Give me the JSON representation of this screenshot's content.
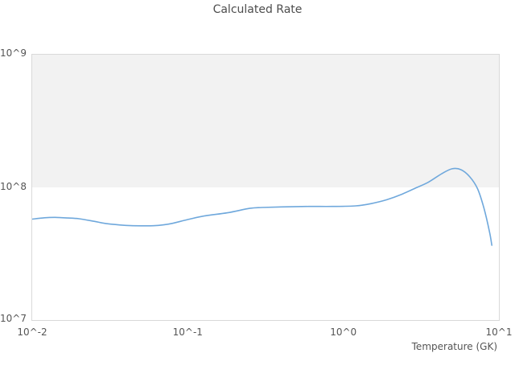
{
  "colors": {
    "line": "#6fa8dc",
    "band_fill": "#f2f2f2",
    "plot_border": "#d9d9d9",
    "title_text": "#4d4d4d",
    "tick_text": "#555555"
  },
  "chart_data": {
    "type": "line",
    "title": "Calculated Rate",
    "xlabel": "Temperature (GK)",
    "ylabel": "",
    "x_scale": "log",
    "y_scale": "log",
    "xlim": [
      0.01,
      10
    ],
    "ylim": [
      10000000.0,
      1000000000.0
    ],
    "x_ticks": [
      "10^-2",
      "10^-1",
      "10^0",
      "10^1"
    ],
    "y_ticks": [
      "10^7",
      "10^8",
      "10^9"
    ],
    "grid": false,
    "legend": "none",
    "shaded_band_y": [
      100000000.0,
      1000000000.0
    ],
    "series": [
      {
        "name": "Calculated Rate",
        "points": [
          [
            0.01,
            57600000.0
          ],
          [
            0.012,
            59000000.0
          ],
          [
            0.014,
            59400000.0
          ],
          [
            0.017,
            58800000.0
          ],
          [
            0.02,
            58000000.0
          ],
          [
            0.025,
            55500000.0
          ],
          [
            0.03,
            53300000.0
          ],
          [
            0.04,
            51700000.0
          ],
          [
            0.05,
            51300000.0
          ],
          [
            0.06,
            51400000.0
          ],
          [
            0.07,
            52200000.0
          ],
          [
            0.08,
            53600000.0
          ],
          [
            0.1,
            57200000.0
          ],
          [
            0.13,
            61100000.0
          ],
          [
            0.18,
            64300000.0
          ],
          [
            0.25,
            69500000.0
          ],
          [
            0.3,
            70500000.0
          ],
          [
            0.4,
            71200000.0
          ],
          [
            0.6,
            71800000.0
          ],
          [
            0.85,
            71800000.0
          ],
          [
            1.2,
            72500000.0
          ],
          [
            1.5,
            75300000.0
          ],
          [
            1.9,
            80700000.0
          ],
          [
            2.4,
            89200000.0
          ],
          [
            2.9,
            98600000.0
          ],
          [
            3.5,
            109000000.0
          ],
          [
            4.3,
            127000000.0
          ],
          [
            5.0,
            138000000.0
          ],
          [
            5.7,
            136000000.0
          ],
          [
            6.5,
            120000000.0
          ],
          [
            7.3,
            97200000.0
          ],
          [
            8.0,
            70200000.0
          ],
          [
            8.7,
            46200000.0
          ],
          [
            9.0,
            36600000.0
          ]
        ]
      }
    ]
  }
}
